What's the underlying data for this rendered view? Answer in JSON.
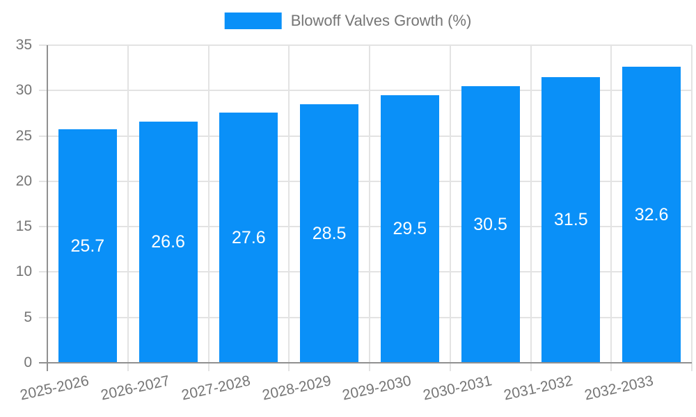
{
  "chart_data": {
    "type": "bar",
    "title": "",
    "xlabel": "",
    "ylabel": "",
    "legend_position": "top",
    "grid": true,
    "categories": [
      "2025-2026",
      "2026-2027",
      "2027-2028",
      "2028-2029",
      "2029-2030",
      "2030-2031",
      "2031-2032",
      "2032-2033"
    ],
    "series": [
      {
        "name": "Blowoff Valves Growth (%)",
        "values": [
          25.7,
          26.6,
          27.6,
          28.5,
          29.5,
          30.5,
          31.5,
          32.6
        ]
      }
    ],
    "value_labels": [
      "25.7",
      "26.6",
      "27.6",
      "28.5",
      "29.5",
      "30.5",
      "31.5",
      "32.6"
    ],
    "ylim": [
      0,
      35
    ],
    "yticks": [
      0,
      5,
      10,
      15,
      20,
      25,
      30,
      35
    ]
  },
  "colors": {
    "bar": "#0a90f8",
    "grid": "#e3e3e3",
    "axis": "#909090",
    "tick_text": "#757575",
    "legend_text": "#757575",
    "value_label": "#ffffff",
    "background": "#ffffff"
  }
}
